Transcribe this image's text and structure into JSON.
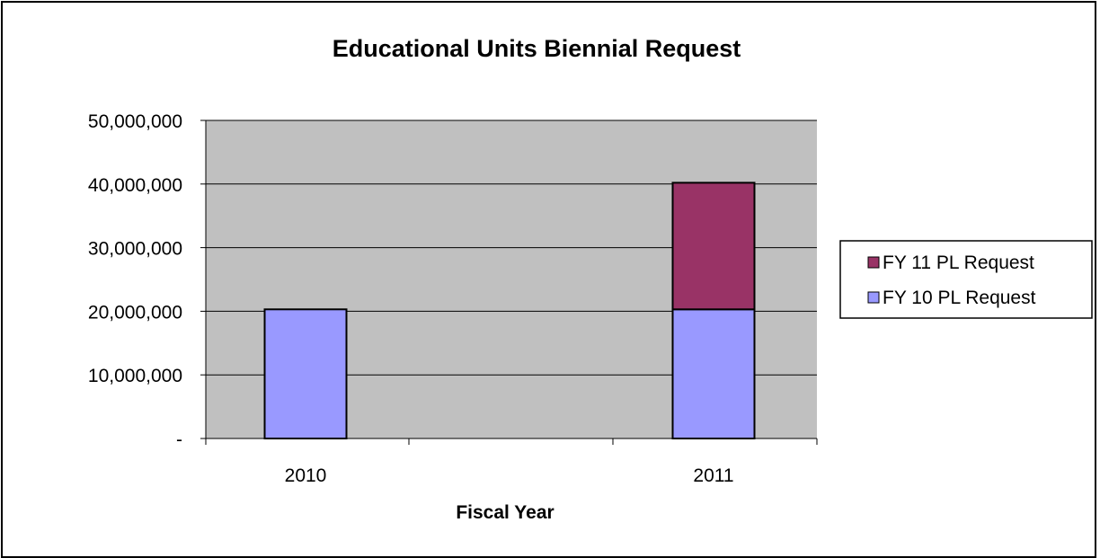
{
  "chart_data": {
    "type": "bar",
    "stacked": true,
    "title": "Educational Units Biennial Request",
    "xlabel": "Fiscal Year",
    "ylabel": "",
    "categories": [
      "2010",
      "2011"
    ],
    "series": [
      {
        "name": "FY 10 PL Request",
        "values": [
          20300000,
          20300000
        ],
        "color": "#9999FF"
      },
      {
        "name": "FY 11 PL Request",
        "values": [
          0,
          19900000
        ],
        "color": "#993366"
      }
    ],
    "ylim": [
      0,
      50000000
    ],
    "yticks": [
      {
        "value": 0,
        "label": "-"
      },
      {
        "value": 10000000,
        "label": "10,000,000"
      },
      {
        "value": 20000000,
        "label": "20,000,000"
      },
      {
        "value": 30000000,
        "label": "30,000,000"
      },
      {
        "value": 40000000,
        "label": "40,000,000"
      },
      {
        "value": 50000000,
        "label": "50,000,000"
      }
    ],
    "grid": true,
    "legend_position": "right",
    "plot_background": "#C0C0C0"
  }
}
